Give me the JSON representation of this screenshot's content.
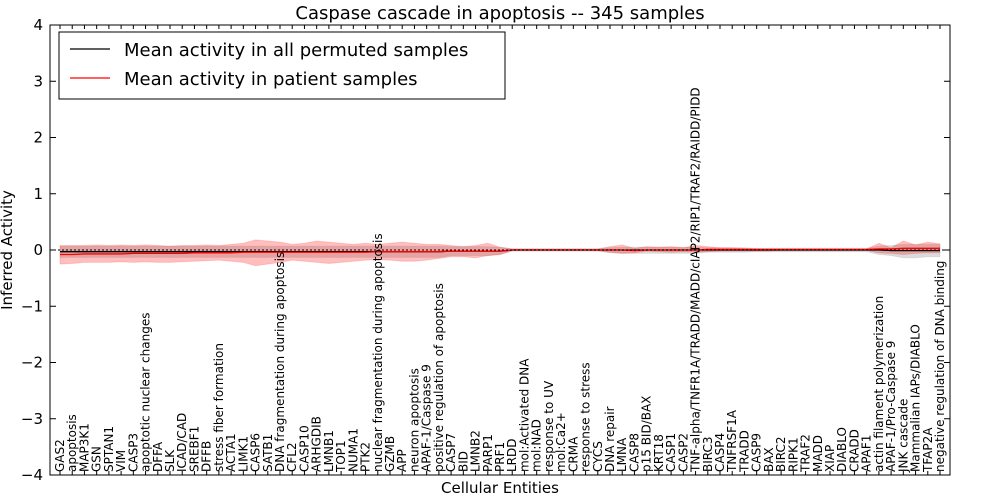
{
  "chart_data": {
    "type": "line",
    "title": "Caspase cascade in apoptosis -- 345 samples",
    "xlabel": "Cellular Entities",
    "ylabel": "Inferred Activity",
    "ylim": [
      -4,
      4
    ],
    "yticks": [
      -4,
      -3,
      -2,
      -1,
      0,
      1,
      2,
      3,
      4
    ],
    "ytick_labels": [
      "−4",
      "−3",
      "−2",
      "−1",
      "0",
      "1",
      "2",
      "3",
      "4"
    ],
    "grid": false,
    "legend_position": "top-left",
    "categories": [
      "GAS2",
      "apoptosis",
      "MAP3K1",
      "GSN",
      "SPTAN1",
      "VIM",
      "CASP3",
      "apoptotic nuclear changes",
      "DFFA",
      "SLK",
      "ICAD/CAD",
      "SREBF1",
      "DFFB",
      "stress fiber formation",
      "ACTA1",
      "LIMK1",
      "CASP6",
      "SATB1",
      "DNA fragmentation during apoptosis",
      "CFL2",
      "CASP10",
      "ARHGDIB",
      "LMNB1",
      "TOP1",
      "NUMA1",
      "PTK2",
      "nuclear fragmentation during apoptosis",
      "GZMB",
      "APP",
      "neuron apoptosis",
      "APAF-1/Caspase 9",
      "positive regulation of apoptosis",
      "CASP7",
      "BID",
      "LMNB2",
      "PARP1",
      "PRF1",
      "LRDD",
      "mol:Activated DNA",
      "mol:NAD",
      "response to UV",
      "mol:Ca2+",
      "CRMA",
      "response to stress",
      "CYCS",
      "DNA repair",
      "LMNA",
      "CASP8",
      "p15 BID/BAX",
      "KRT18",
      "CASP1",
      "CASP2",
      "TNF-alpha/TNFR1A/TRADD/MADD/cIAP2/RIP1/TRAF2/RAIDD/PIDD",
      "BIRC3",
      "CASP4",
      "TNFRSF1A",
      "TRADD",
      "CASP9",
      "BAX",
      "BIRC2",
      "RIPK1",
      "TRAF2",
      "MADD",
      "XIAP",
      "DIABLO",
      "CRADD",
      "APAF1",
      "actin filament polymerization",
      "APAF-1/Pro-Caspase 9",
      "JNK cascade",
      "Mammalian IAPs/DIABLO",
      "TFAP2A",
      "negative regulation of DNA binding"
    ],
    "series": [
      {
        "name": "Mean activity in all permuted samples",
        "color": "#000000",
        "values": [
          -0.03,
          -0.03,
          -0.03,
          -0.03,
          -0.03,
          -0.03,
          -0.03,
          -0.03,
          -0.03,
          -0.03,
          -0.03,
          -0.03,
          -0.03,
          -0.03,
          -0.03,
          -0.03,
          -0.03,
          -0.03,
          -0.03,
          -0.03,
          -0.03,
          -0.03,
          -0.03,
          -0.03,
          -0.03,
          -0.03,
          -0.03,
          -0.03,
          -0.03,
          -0.03,
          -0.03,
          -0.03,
          -0.02,
          -0.02,
          -0.02,
          -0.02,
          -0.02,
          0,
          0,
          0,
          0,
          0,
          0,
          0,
          0,
          0,
          0,
          0,
          0,
          0,
          0,
          0,
          0,
          0,
          0,
          0,
          0,
          0,
          0,
          0,
          0,
          0,
          0,
          0,
          0,
          0,
          0,
          0,
          -0.01,
          -0.01,
          -0.01,
          -0.01,
          -0.01
        ],
        "band_lower": [
          -0.13,
          -0.13,
          -0.13,
          -0.13,
          -0.13,
          -0.13,
          -0.13,
          -0.13,
          -0.13,
          -0.13,
          -0.13,
          -0.13,
          -0.13,
          -0.13,
          -0.13,
          -0.13,
          -0.13,
          -0.13,
          -0.13,
          -0.13,
          -0.13,
          -0.13,
          -0.13,
          -0.13,
          -0.13,
          -0.13,
          -0.13,
          -0.13,
          -0.13,
          -0.13,
          -0.13,
          -0.13,
          -0.1,
          -0.1,
          -0.1,
          -0.1,
          -0.08,
          -0.02,
          -0.02,
          -0.02,
          -0.02,
          -0.02,
          -0.02,
          -0.02,
          -0.02,
          -0.05,
          -0.06,
          -0.06,
          -0.06,
          -0.06,
          -0.06,
          -0.06,
          -0.06,
          -0.04,
          -0.04,
          -0.04,
          -0.04,
          -0.03,
          -0.03,
          -0.03,
          -0.03,
          -0.03,
          -0.03,
          -0.03,
          -0.03,
          -0.03,
          -0.03,
          -0.08,
          -0.1,
          -0.14,
          -0.14,
          -0.12,
          -0.12
        ],
        "band_upper": [
          0.07,
          0.07,
          0.07,
          0.07,
          0.07,
          0.07,
          0.07,
          0.07,
          0.07,
          0.07,
          0.07,
          0.07,
          0.07,
          0.07,
          0.07,
          0.07,
          0.07,
          0.07,
          0.07,
          0.07,
          0.07,
          0.07,
          0.07,
          0.07,
          0.07,
          0.07,
          0.07,
          0.07,
          0.07,
          0.07,
          0.07,
          0.07,
          0.06,
          0.06,
          0.06,
          0.06,
          0.05,
          0.02,
          0.02,
          0.02,
          0.02,
          0.02,
          0.02,
          0.02,
          0.02,
          0.04,
          0.05,
          0.05,
          0.05,
          0.05,
          0.05,
          0.05,
          0.05,
          0.04,
          0.04,
          0.04,
          0.04,
          0.03,
          0.03,
          0.03,
          0.03,
          0.03,
          0.03,
          0.03,
          0.03,
          0.03,
          0.03,
          0.07,
          0.08,
          0.1,
          0.1,
          0.1,
          0.1
        ]
      },
      {
        "name": "Mean activity in patient samples",
        "color": "#ff0000",
        "values": [
          -0.08,
          -0.08,
          -0.07,
          -0.07,
          -0.07,
          -0.07,
          -0.06,
          -0.06,
          -0.06,
          -0.06,
          -0.06,
          -0.05,
          -0.05,
          -0.05,
          -0.05,
          -0.04,
          -0.04,
          -0.04,
          -0.04,
          -0.04,
          -0.04,
          -0.04,
          -0.04,
          -0.04,
          -0.04,
          -0.04,
          -0.03,
          -0.03,
          -0.03,
          -0.03,
          -0.03,
          -0.03,
          -0.02,
          -0.02,
          -0.02,
          -0.02,
          -0.02,
          0,
          0,
          0,
          0,
          0,
          0,
          0,
          0,
          0,
          0,
          -0.01,
          0,
          0,
          0,
          0,
          0,
          0.01,
          0.01,
          0.01,
          0.01,
          0.01,
          0.01,
          0.01,
          0.01,
          0.01,
          0.01,
          0.01,
          0.01,
          0.01,
          0.01,
          0.02,
          0.02,
          0.03,
          0.03,
          0.03,
          0.03
        ],
        "band_lower": [
          -0.25,
          -0.24,
          -0.22,
          -0.22,
          -0.22,
          -0.21,
          -0.22,
          -0.21,
          -0.22,
          -0.22,
          -0.21,
          -0.2,
          -0.19,
          -0.18,
          -0.2,
          -0.22,
          -0.28,
          -0.25,
          -0.22,
          -0.18,
          -0.2,
          -0.22,
          -0.24,
          -0.22,
          -0.2,
          -0.18,
          -0.17,
          -0.18,
          -0.2,
          -0.2,
          -0.18,
          -0.15,
          -0.12,
          -0.12,
          -0.14,
          -0.1,
          -0.08,
          -0.01,
          -0.01,
          -0.01,
          -0.01,
          -0.01,
          -0.01,
          -0.01,
          -0.01,
          -0.04,
          -0.06,
          -0.05,
          -0.02,
          -0.03,
          -0.04,
          -0.03,
          -0.04,
          -0.03,
          -0.02,
          -0.02,
          -0.02,
          -0.02,
          -0.02,
          -0.01,
          -0.01,
          -0.01,
          -0.01,
          -0.01,
          -0.01,
          -0.01,
          -0.01,
          -0.05,
          -0.06,
          -0.08,
          -0.06,
          -0.05,
          -0.05
        ],
        "band_upper": [
          0.08,
          0.08,
          0.08,
          0.09,
          0.08,
          0.09,
          0.08,
          0.09,
          0.08,
          0.07,
          0.08,
          0.08,
          0.09,
          0.08,
          0.1,
          0.12,
          0.18,
          0.16,
          0.14,
          0.1,
          0.12,
          0.16,
          0.14,
          0.12,
          0.1,
          0.12,
          0.1,
          0.12,
          0.14,
          0.12,
          0.1,
          0.1,
          0.08,
          0.06,
          0.08,
          0.12,
          0.05,
          0.02,
          0.02,
          0.02,
          0.02,
          0.02,
          0.02,
          0.02,
          0.02,
          0.06,
          0.09,
          0.03,
          0.06,
          0.05,
          0.06,
          0.04,
          0.08,
          0.06,
          0.04,
          0.04,
          0.03,
          0.02,
          0.02,
          0.02,
          0.02,
          0.02,
          0.02,
          0.02,
          0.02,
          0.02,
          0.02,
          0.12,
          0.04,
          0.16,
          0.09,
          0.14,
          0.11
        ]
      }
    ],
    "reference_line": {
      "y": 0,
      "style": "dotted",
      "color": "#000000"
    }
  }
}
